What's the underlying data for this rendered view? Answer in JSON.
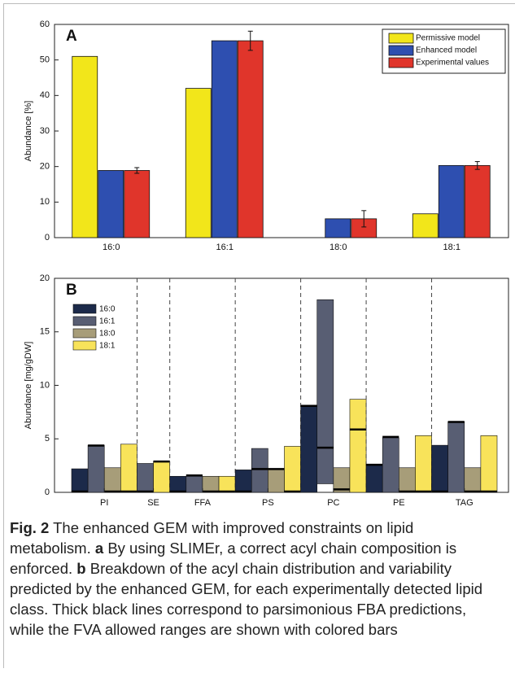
{
  "chart_data": [
    {
      "type": "bar",
      "panel": "A",
      "ylabel": "Abundance [%]",
      "categories": [
        "16:0",
        "16:1",
        "18:0",
        "18:1"
      ],
      "ylim": [
        0,
        60
      ],
      "yticks": [
        0,
        10,
        20,
        30,
        40,
        50,
        60
      ],
      "series": [
        {
          "name": "Permissive model",
          "color": "#f2e61a",
          "values": [
            51,
            42,
            0,
            6.7
          ]
        },
        {
          "name": "Enhanced model",
          "color": "#2e4fb0",
          "values": [
            18.9,
            55.4,
            5.3,
            20.3
          ]
        },
        {
          "name": "Experimental values",
          "color": "#e0352b",
          "values": [
            18.9,
            55.4,
            5.3,
            20.3
          ],
          "errors": [
            0.8,
            2.7,
            2.3,
            1.1
          ]
        }
      ]
    },
    {
      "type": "floating_bar",
      "panel": "B",
      "ylabel": "Abundance [mg/gDW]",
      "categories": [
        "PI",
        "SE",
        "FFA",
        "PS",
        "PC",
        "PE",
        "TAG"
      ],
      "ylim": [
        0,
        20
      ],
      "yticks": [
        0,
        5,
        10,
        15,
        20
      ],
      "series": [
        {
          "name": "16:0",
          "color": "#1c2a4a",
          "min": [
            0,
            null,
            0,
            0,
            0,
            0,
            0
          ],
          "max": [
            2.2,
            null,
            1.5,
            2.1,
            8.1,
            2.6,
            4.4
          ],
          "pfba": [
            0,
            null,
            0,
            0,
            8,
            2.5,
            0
          ]
        },
        {
          "name": "16:1",
          "color": "#585e73",
          "min": [
            0,
            0,
            0,
            0,
            0.8,
            0,
            0
          ],
          "max": [
            4.4,
            2.7,
            1.5,
            4.1,
            18,
            5.1,
            6.6
          ],
          "pfba": [
            4.3,
            0,
            1.5,
            2.1,
            4.1,
            5.1,
            6.5
          ]
        },
        {
          "name": "18:0",
          "color": "#a79d79",
          "min": [
            0,
            null,
            0,
            0,
            0,
            0,
            0
          ],
          "max": [
            2.3,
            null,
            1.5,
            2.2,
            2.3,
            2.3,
            2.3
          ],
          "pfba": [
            0,
            null,
            0,
            2.1,
            0.2,
            0,
            0
          ]
        },
        {
          "name": "18:1",
          "color": "#f8e35a",
          "min": [
            0,
            0,
            0,
            0,
            0,
            0,
            0
          ],
          "max": [
            4.5,
            2.9,
            1.5,
            4.3,
            8.7,
            5.3,
            5.3
          ],
          "pfba": [
            0,
            2.8,
            0,
            0,
            5.8,
            0,
            0
          ]
        }
      ]
    }
  ],
  "caption": {
    "label": "Fig. 2",
    "intro": "The enhanced GEM with improved constraints on lipid metabolism.",
    "items": [
      {
        "label": "a",
        "text": "By using SLIMEr, a correct acyl chain composition is enforced."
      },
      {
        "label": "b",
        "text": "Breakdown of the acyl chain distribution and variability predicted by the enhanced GEM, for each experimentally detected lipid class. Thick black lines correspond to parsimonious FBA predictions, while the FVA allowed ranges are shown with colored bars"
      }
    ]
  }
}
